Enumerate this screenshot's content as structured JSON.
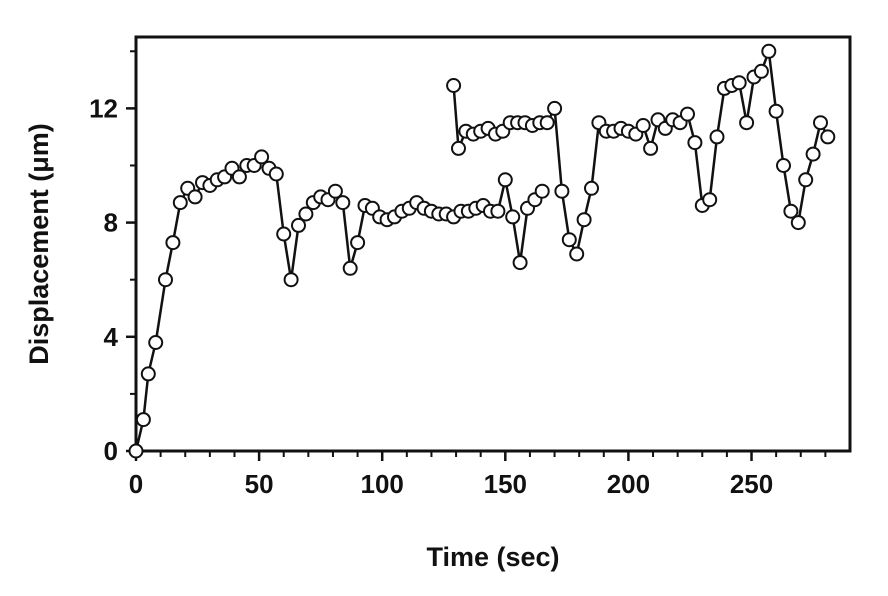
{
  "chart_data": {
    "type": "scatter",
    "title": "",
    "xlabel": "Time (sec)",
    "ylabel": "Displacement (μm)",
    "xlim": [
      0,
      290
    ],
    "ylim": [
      0,
      14.5
    ],
    "x_ticks": [
      0,
      50,
      100,
      150,
      200,
      250
    ],
    "y_ticks": [
      0,
      4,
      8,
      12
    ],
    "grid": false,
    "legend": "none",
    "marker": "open-circle",
    "series": [
      {
        "values": [
          [
            0,
            0.0
          ],
          [
            3,
            1.1
          ],
          [
            5,
            2.7
          ],
          [
            8,
            3.8
          ],
          [
            12,
            6.0
          ],
          [
            15,
            7.3
          ],
          [
            18,
            8.7
          ],
          [
            21,
            9.2
          ],
          [
            24,
            8.9
          ],
          [
            27,
            9.4
          ],
          [
            30,
            9.3
          ],
          [
            33,
            9.5
          ],
          [
            36,
            9.6
          ],
          [
            39,
            9.9
          ],
          [
            42,
            9.6
          ],
          [
            45,
            10.0
          ],
          [
            48,
            10.0
          ],
          [
            51,
            10.3
          ],
          [
            54,
            9.9
          ],
          [
            57,
            9.7
          ],
          [
            60,
            7.6
          ],
          [
            63,
            6.0
          ],
          [
            66,
            7.9
          ],
          [
            69,
            8.3
          ],
          [
            72,
            8.7
          ],
          [
            75,
            8.9
          ],
          [
            78,
            8.8
          ],
          [
            81,
            9.1
          ],
          [
            84,
            8.7
          ],
          [
            87,
            6.4
          ],
          [
            90,
            7.3
          ],
          [
            93,
            8.6
          ],
          [
            96,
            8.5
          ],
          [
            99,
            8.2
          ],
          [
            102,
            8.1
          ],
          [
            105,
            8.2
          ],
          [
            108,
            8.4
          ],
          [
            111,
            8.5
          ],
          [
            114,
            8.7
          ],
          [
            117,
            8.5
          ],
          [
            120,
            8.4
          ],
          [
            123,
            8.3
          ],
          [
            126,
            8.3
          ],
          [
            129,
            8.2
          ],
          [
            132,
            8.4
          ],
          [
            135,
            8.4
          ],
          [
            138,
            8.5
          ],
          [
            141,
            8.6
          ],
          [
            144,
            8.4
          ],
          [
            147,
            8.4
          ],
          [
            150,
            9.5
          ],
          [
            153,
            8.2
          ],
          [
            156,
            6.6
          ],
          [
            159,
            8.5
          ],
          [
            162,
            8.8
          ],
          [
            165,
            9.1
          ]
        ]
      },
      {
        "values": [
          [
            129,
            12.8
          ],
          [
            131,
            10.6
          ],
          [
            134,
            11.2
          ],
          [
            137,
            11.1
          ],
          [
            140,
            11.2
          ],
          [
            143,
            11.3
          ],
          [
            146,
            11.1
          ],
          [
            149,
            11.2
          ],
          [
            152,
            11.5
          ],
          [
            155,
            11.5
          ],
          [
            158,
            11.5
          ],
          [
            161,
            11.4
          ],
          [
            164,
            11.5
          ],
          [
            167,
            11.5
          ],
          [
            170,
            12.0
          ],
          [
            173,
            9.1
          ],
          [
            176,
            7.4
          ],
          [
            179,
            6.9
          ],
          [
            182,
            8.1
          ],
          [
            185,
            9.2
          ],
          [
            188,
            11.5
          ],
          [
            191,
            11.2
          ],
          [
            194,
            11.2
          ],
          [
            197,
            11.3
          ],
          [
            200,
            11.2
          ],
          [
            203,
            11.1
          ],
          [
            206,
            11.4
          ],
          [
            209,
            10.6
          ],
          [
            212,
            11.6
          ],
          [
            215,
            11.3
          ],
          [
            218,
            11.6
          ],
          [
            221,
            11.5
          ],
          [
            224,
            11.8
          ],
          [
            227,
            10.8
          ],
          [
            230,
            8.6
          ],
          [
            233,
            8.8
          ],
          [
            236,
            11.0
          ],
          [
            239,
            12.7
          ],
          [
            242,
            12.8
          ],
          [
            245,
            12.9
          ],
          [
            248,
            11.5
          ],
          [
            251,
            13.1
          ],
          [
            254,
            13.3
          ],
          [
            257,
            14.0
          ],
          [
            260,
            11.9
          ],
          [
            263,
            10.0
          ],
          [
            266,
            8.4
          ],
          [
            269,
            8.0
          ],
          [
            272,
            9.5
          ],
          [
            275,
            10.4
          ],
          [
            278,
            11.5
          ],
          [
            281,
            11.0
          ]
        ]
      }
    ]
  }
}
